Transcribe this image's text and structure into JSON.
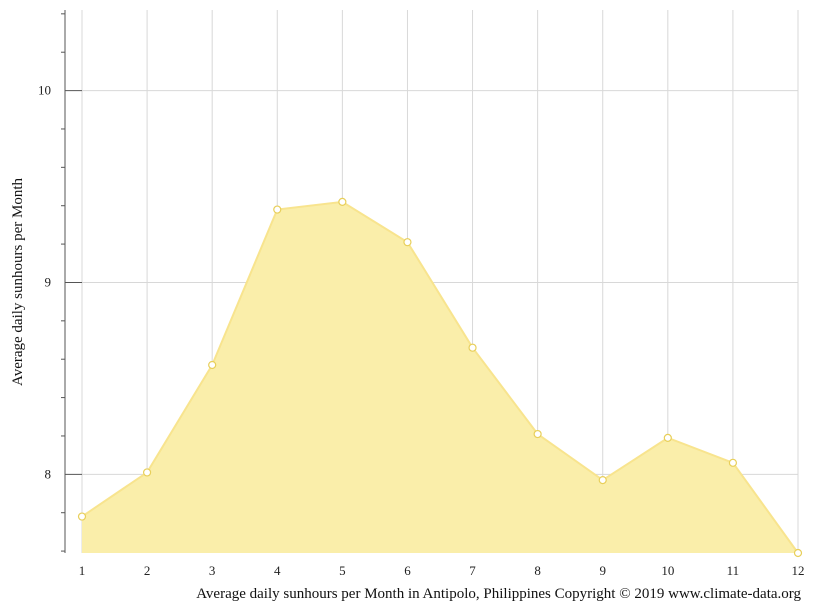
{
  "chart_data": {
    "type": "area",
    "title": "",
    "xlabel": "Average daily sunhours per Month in Antipolo, Philippines Copyright © 2019 www.climate-data.org",
    "ylabel": "Average daily sunhours per Month",
    "x": [
      1,
      2,
      3,
      4,
      5,
      6,
      7,
      8,
      9,
      10,
      11,
      12
    ],
    "x_tick_labels": [
      "1",
      "2",
      "3",
      "4",
      "5",
      "6",
      "7",
      "8",
      "9",
      "10",
      "11",
      "12"
    ],
    "series": [
      {
        "values": [
          7.78,
          8.01,
          8.57,
          9.38,
          9.42,
          9.21,
          8.66,
          8.21,
          7.97,
          8.19,
          8.06,
          7.59
        ]
      }
    ],
    "y_ticks": [
      8,
      9,
      10
    ],
    "y_tick_labels": [
      "8",
      "9",
      "10"
    ],
    "ylim": [
      7.59,
      10.42
    ],
    "xlim": [
      1,
      12
    ],
    "grid": true,
    "legend": "none",
    "colors": {
      "fill": "#faeeaa",
      "line": "#f8e48e",
      "marker_fill": "#ffffff",
      "marker_stroke": "#e8cf5a",
      "grid": "#d8d8d8",
      "axis": "#555555"
    }
  }
}
